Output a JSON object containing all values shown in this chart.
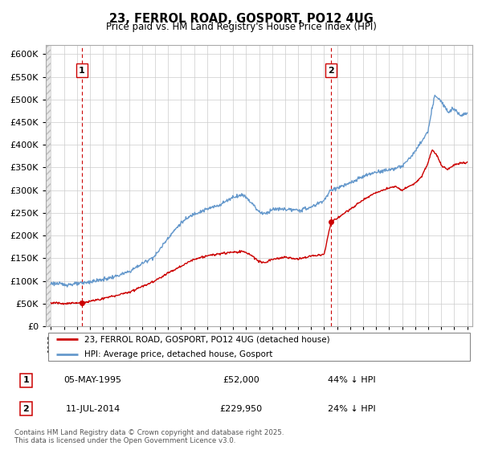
{
  "title": "23, FERROL ROAD, GOSPORT, PO12 4UG",
  "subtitle": "Price paid vs. HM Land Registry's House Price Index (HPI)",
  "ylim": [
    0,
    620000
  ],
  "yticks": [
    0,
    50000,
    100000,
    150000,
    200000,
    250000,
    300000,
    350000,
    400000,
    450000,
    500000,
    550000,
    600000
  ],
  "xlim_start": 1992.6,
  "xlim_end": 2025.4,
  "sale1_date": 1995.35,
  "sale1_price": 52000,
  "sale2_date": 2014.53,
  "sale2_price": 229950,
  "red_color": "#cc0000",
  "blue_color": "#6699cc",
  "legend_label_red": "23, FERROL ROAD, GOSPORT, PO12 4UG (detached house)",
  "legend_label_blue": "HPI: Average price, detached house, Gosport",
  "table_row1": [
    "1",
    "05-MAY-1995",
    "£52,000",
    "44% ↓ HPI"
  ],
  "table_row2": [
    "2",
    "11-JUL-2014",
    "£229,950",
    "24% ↓ HPI"
  ],
  "footnote": "Contains HM Land Registry data © Crown copyright and database right 2025.\nThis data is licensed under the Open Government Licence v3.0.",
  "hpi_anchors": [
    [
      1993.0,
      95000
    ],
    [
      1994.0,
      92000
    ],
    [
      1995.0,
      93000
    ],
    [
      1996.0,
      98000
    ],
    [
      1997.0,
      103000
    ],
    [
      1998.0,
      110000
    ],
    [
      1999.0,
      120000
    ],
    [
      2000.0,
      138000
    ],
    [
      2001.0,
      155000
    ],
    [
      2002.0,
      195000
    ],
    [
      2003.0,
      228000
    ],
    [
      2004.0,
      248000
    ],
    [
      2005.0,
      258000
    ],
    [
      2006.0,
      268000
    ],
    [
      2007.0,
      285000
    ],
    [
      2007.8,
      290000
    ],
    [
      2008.5,
      270000
    ],
    [
      2009.0,
      252000
    ],
    [
      2009.5,
      248000
    ],
    [
      2010.0,
      258000
    ],
    [
      2011.0,
      258000
    ],
    [
      2012.0,
      255000
    ],
    [
      2013.0,
      262000
    ],
    [
      2014.0,
      278000
    ],
    [
      2014.53,
      300000
    ],
    [
      2015.0,
      305000
    ],
    [
      2016.0,
      315000
    ],
    [
      2017.0,
      330000
    ],
    [
      2018.0,
      340000
    ],
    [
      2019.0,
      345000
    ],
    [
      2020.0,
      352000
    ],
    [
      2021.0,
      385000
    ],
    [
      2022.0,
      430000
    ],
    [
      2022.5,
      510000
    ],
    [
      2023.0,
      495000
    ],
    [
      2023.5,
      475000
    ],
    [
      2024.0,
      480000
    ],
    [
      2024.5,
      465000
    ],
    [
      2025.0,
      470000
    ]
  ],
  "price_anchors": [
    [
      1993.0,
      52000
    ],
    [
      1994.0,
      50000
    ],
    [
      1995.35,
      52000
    ],
    [
      1996.0,
      55000
    ],
    [
      1997.0,
      61000
    ],
    [
      1998.0,
      68000
    ],
    [
      1999.0,
      75000
    ],
    [
      2000.0,
      88000
    ],
    [
      2001.0,
      100000
    ],
    [
      2002.0,
      118000
    ],
    [
      2003.0,
      132000
    ],
    [
      2004.0,
      148000
    ],
    [
      2005.0,
      155000
    ],
    [
      2006.0,
      160000
    ],
    [
      2007.0,
      163000
    ],
    [
      2007.8,
      165000
    ],
    [
      2008.5,
      155000
    ],
    [
      2009.0,
      142000
    ],
    [
      2009.5,
      140000
    ],
    [
      2010.0,
      148000
    ],
    [
      2011.0,
      152000
    ],
    [
      2012.0,
      148000
    ],
    [
      2013.0,
      155000
    ],
    [
      2014.0,
      158000
    ],
    [
      2014.53,
      229950
    ],
    [
      2015.0,
      238000
    ],
    [
      2016.0,
      258000
    ],
    [
      2017.0,
      278000
    ],
    [
      2018.0,
      295000
    ],
    [
      2019.0,
      305000
    ],
    [
      2019.5,
      308000
    ],
    [
      2020.0,
      300000
    ],
    [
      2021.0,
      315000
    ],
    [
      2021.5,
      330000
    ],
    [
      2022.0,
      360000
    ],
    [
      2022.3,
      390000
    ],
    [
      2022.7,
      375000
    ],
    [
      2023.0,
      355000
    ],
    [
      2023.5,
      345000
    ],
    [
      2024.0,
      355000
    ],
    [
      2024.5,
      360000
    ],
    [
      2025.0,
      360000
    ]
  ]
}
